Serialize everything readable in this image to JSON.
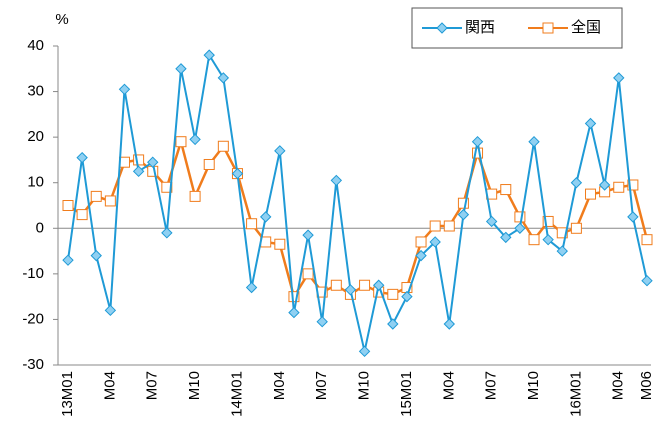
{
  "chart_data": {
    "type": "line",
    "unit_label": "%",
    "categories": [
      "13M01",
      null,
      null,
      "M04",
      null,
      null,
      "M07",
      null,
      null,
      "M10",
      null,
      null,
      "14M01",
      null,
      null,
      "M04",
      null,
      null,
      "M07",
      null,
      null,
      "M10",
      null,
      null,
      "15M01",
      null,
      null,
      "M04",
      null,
      null,
      "M07",
      null,
      null,
      "M10",
      null,
      null,
      "16M01",
      null,
      null,
      "M04",
      null,
      "M06"
    ],
    "series": [
      {
        "name": "関西",
        "color": "#1f9ad6",
        "marker": "diamond",
        "values": [
          -7,
          15.5,
          -6,
          -18,
          30.5,
          12.5,
          14.5,
          -1,
          35,
          19.5,
          38,
          33,
          12,
          -13,
          2.5,
          17,
          -18.5,
          -1.5,
          -20.5,
          10.5,
          -13.5,
          -27,
          -12.5,
          -21,
          -15,
          -6,
          -3,
          -21,
          3,
          19,
          1.5,
          -2,
          0,
          19,
          -2.5,
          -5,
          10,
          23,
          9.5,
          33,
          2.5,
          -11.5
        ]
      },
      {
        "name": "全国",
        "color": "#f07c1c",
        "marker": "square",
        "values": [
          5,
          3,
          7,
          6,
          14.5,
          15,
          12.5,
          9,
          19,
          7,
          14,
          18,
          12,
          1,
          -3,
          -3.5,
          -15,
          -10,
          -14,
          -12.5,
          -14.5,
          -12.5,
          -14,
          -14.5,
          -13,
          -3,
          0.5,
          0.5,
          5.5,
          16.5,
          7.5,
          8.5,
          2.5,
          -2.5,
          1.5,
          -1,
          0,
          7.5,
          8,
          9,
          9.5,
          -2.5
        ]
      }
    ],
    "ylim": [
      -30,
      40
    ],
    "yticks": [
      -30,
      -20,
      -10,
      0,
      10,
      20,
      30,
      40
    ],
    "grid": false,
    "legend": "top-right"
  }
}
